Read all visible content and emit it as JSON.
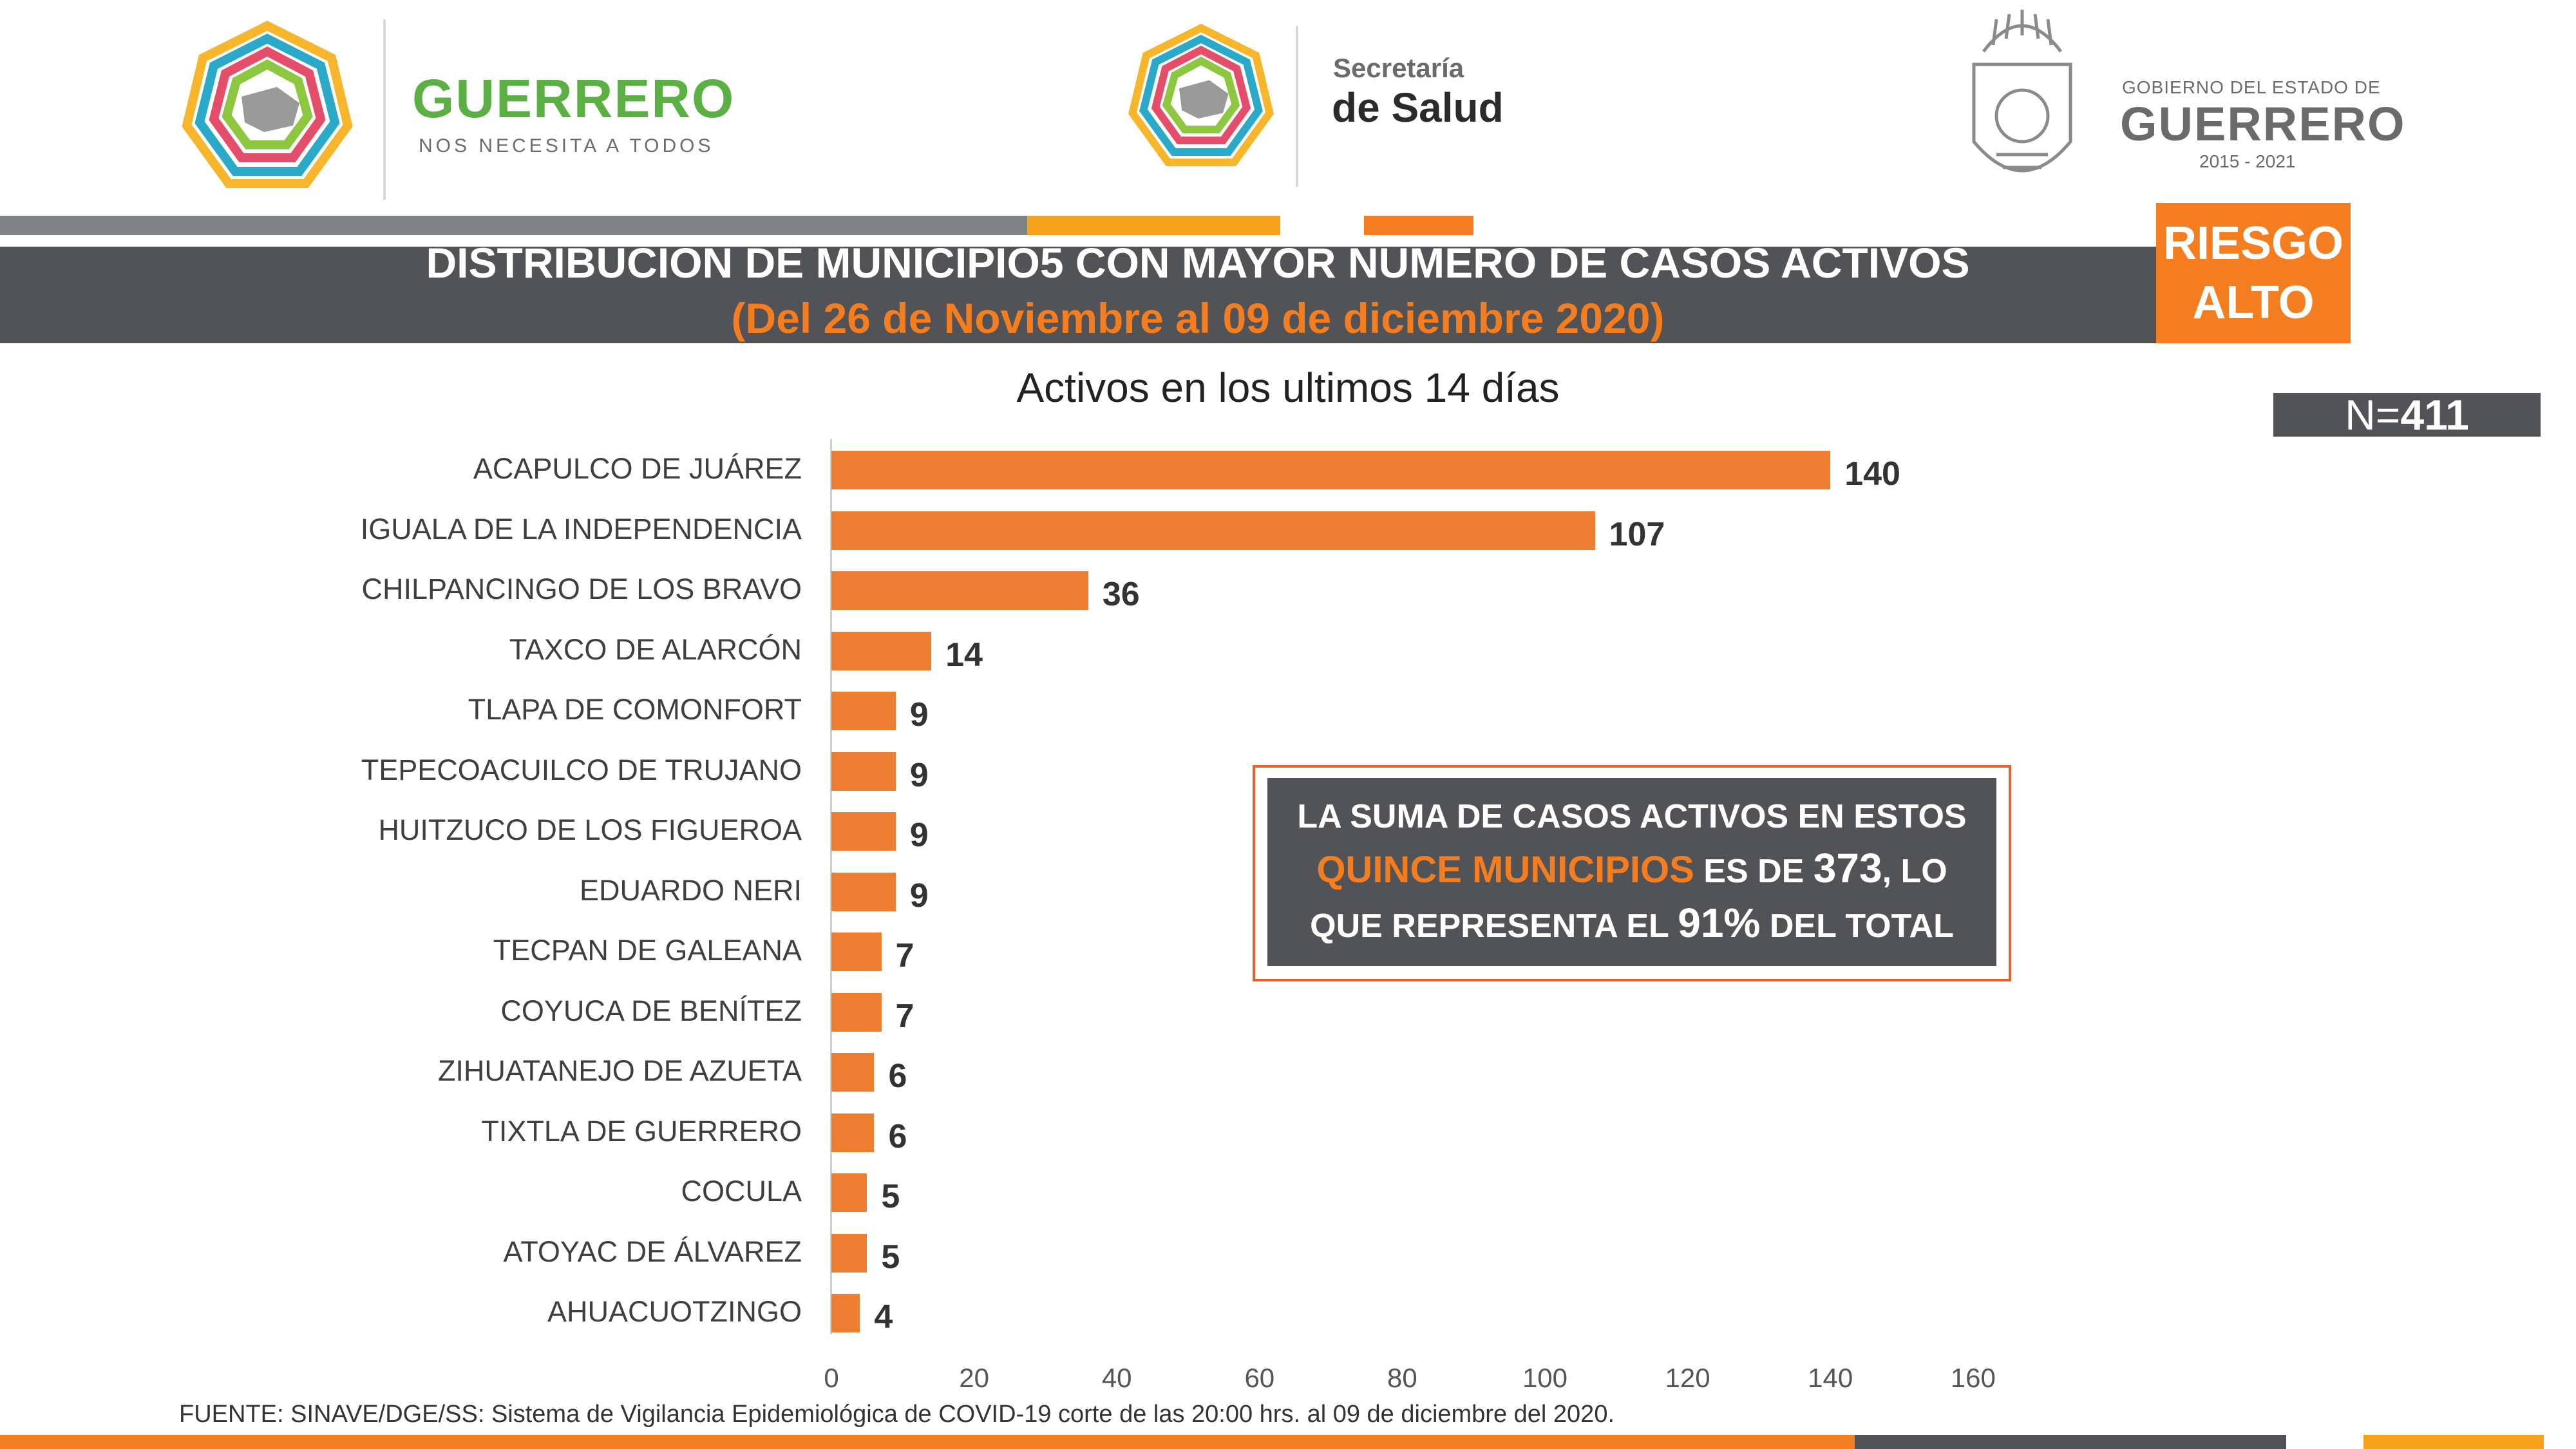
{
  "header": {
    "logo_left": {
      "brand": "GUERRERO",
      "tagline": "NOS NECESITA A TODOS"
    },
    "logo_center": {
      "line1": "Secretaría",
      "line2": "de Salud"
    },
    "logo_right": {
      "line1": "GOBIERNO DEL ESTADO DE",
      "line2": "GUERRERO",
      "years": "2015 - 2021"
    }
  },
  "title": {
    "line1": "DISTRIBUCIÓN DE MUNICIPIO5 CON MAYOR NÚMERO DE  CASOS ACTIVOS",
    "line2": "(Del 26 de Noviembre al 09 de diciembre 2020)"
  },
  "risk_badge": {
    "line1": "RIESGO",
    "line2": "ALTO"
  },
  "n_badge": {
    "prefix": "N=",
    "value": "411"
  },
  "callout": {
    "p1": "LA SUMA DE CASOS ACTIVOS EN ESTOS",
    "highlight": "QUINCE MUNICIPIOS",
    "p2": "ES DE",
    "total": "373",
    "p3": ", LO",
    "p4": "QUE REPRESENTA EL",
    "percent": "91%",
    "p5": "DEL TOTAL"
  },
  "source": "FUENTE: SINAVE/DGE/SS: Sistema de Vigilancia Epidemiológica de COVID-19 corte de las 20:00 hrs. al 09 de diciembre del 2020.",
  "colors": {
    "accent": "#f47d20",
    "bar": "#ed7d31",
    "dark": "#515357",
    "green": "#5bb043"
  },
  "chart_data": {
    "type": "bar",
    "orientation": "horizontal",
    "title": "Activos en los ultimos 14 días",
    "categories": [
      "ACAPULCO DE JUÁREZ",
      "IGUALA DE LA INDEPENDENCIA",
      "CHILPANCINGO DE LOS BRAVO",
      "TAXCO DE ALARCÓN",
      "TLAPA DE COMONFORT",
      "TEPECOACUILCO DE TRUJANO",
      "HUITZUCO DE LOS FIGUEROA",
      "EDUARDO NERI",
      "TECPAN DE GALEANA",
      "COYUCA DE BENÍTEZ",
      "ZIHUATANEJO DE AZUETA",
      "TIXTLA DE GUERRERO",
      "COCULA",
      "ATOYAC DE ÁLVAREZ",
      "AHUACUOTZINGO"
    ],
    "values": [
      140,
      107,
      36,
      14,
      9,
      9,
      9,
      9,
      7,
      7,
      6,
      6,
      5,
      5,
      4
    ],
    "xlim": [
      0,
      160
    ],
    "xticks": [
      0,
      20,
      40,
      60,
      80,
      100,
      120,
      140,
      160
    ],
    "grid": false,
    "data_labels": true
  }
}
